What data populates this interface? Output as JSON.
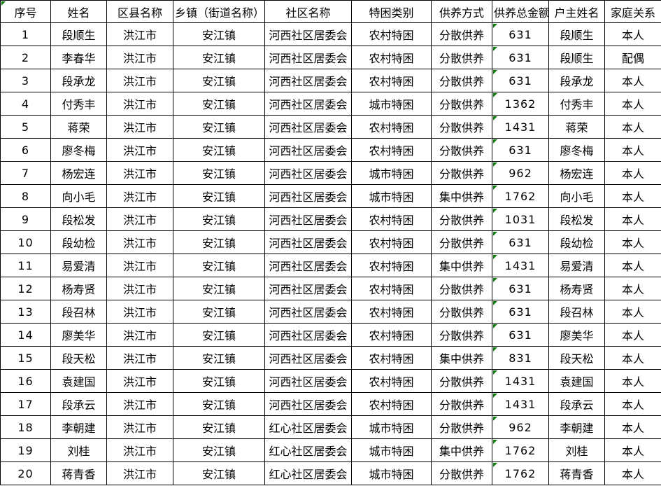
{
  "colors": {
    "error_indicator": "#0a7d0a",
    "grid_border": "#000000",
    "background": "#ffffff",
    "text": "#000000"
  },
  "icons": {
    "error_indicator_icon": "green-corner-triangle"
  },
  "table": {
    "columns": [
      "序号",
      "姓名",
      "区县名称",
      "乡镇（街道名称）",
      "社区名称",
      "特困类别",
      "供养方式",
      "供养总金额",
      "户主姓名",
      "家庭关系"
    ],
    "error_indicator_on_header_first_cell": true,
    "error_indicator_on_amount_cells": true,
    "rows": [
      [
        "1",
        "段顺生",
        "洪江市",
        "安江镇",
        "河西社区居委会",
        "农村特困",
        "分散供养",
        "631",
        "段顺生",
        "本人"
      ],
      [
        "2",
        "李春华",
        "洪江市",
        "安江镇",
        "河西社区居委会",
        "农村特困",
        "分散供养",
        "631",
        "段顺生",
        "配偶"
      ],
      [
        "3",
        "段承龙",
        "洪江市",
        "安江镇",
        "河西社区居委会",
        "农村特困",
        "分散供养",
        "631",
        "段承龙",
        "本人"
      ],
      [
        "4",
        "付秀丰",
        "洪江市",
        "安江镇",
        "河西社区居委会",
        "城市特困",
        "分散供养",
        "1362",
        "付秀丰",
        "本人"
      ],
      [
        "5",
        "蒋荣",
        "洪江市",
        "安江镇",
        "河西社区居委会",
        "农村特困",
        "分散供养",
        "1431",
        "蒋荣",
        "本人"
      ],
      [
        "6",
        "廖冬梅",
        "洪江市",
        "安江镇",
        "河西社区居委会",
        "农村特困",
        "分散供养",
        "631",
        "廖冬梅",
        "本人"
      ],
      [
        "7",
        "杨宏连",
        "洪江市",
        "安江镇",
        "河西社区居委会",
        "城市特困",
        "分散供养",
        "962",
        "杨宏连",
        "本人"
      ],
      [
        "8",
        "向小毛",
        "洪江市",
        "安江镇",
        "河西社区居委会",
        "城市特困",
        "集中供养",
        "1762",
        "向小毛",
        "本人"
      ],
      [
        "9",
        "段松发",
        "洪江市",
        "安江镇",
        "河西社区居委会",
        "农村特困",
        "分散供养",
        "1031",
        "段松发",
        "本人"
      ],
      [
        "10",
        "段幼检",
        "洪江市",
        "安江镇",
        "河西社区居委会",
        "农村特困",
        "分散供养",
        "631",
        "段幼检",
        "本人"
      ],
      [
        "11",
        "易爱清",
        "洪江市",
        "安江镇",
        "河西社区居委会",
        "农村特困",
        "集中供养",
        "1431",
        "易爱清",
        "本人"
      ],
      [
        "12",
        "杨寿贤",
        "洪江市",
        "安江镇",
        "河西社区居委会",
        "农村特困",
        "分散供养",
        "631",
        "杨寿贤",
        "本人"
      ],
      [
        "13",
        "段召林",
        "洪江市",
        "安江镇",
        "河西社区居委会",
        "农村特困",
        "分散供养",
        "631",
        "段召林",
        "本人"
      ],
      [
        "14",
        "廖美华",
        "洪江市",
        "安江镇",
        "河西社区居委会",
        "农村特困",
        "分散供养",
        "631",
        "廖美华",
        "本人"
      ],
      [
        "15",
        "段天松",
        "洪江市",
        "安江镇",
        "河西社区居委会",
        "农村特困",
        "集中供养",
        "831",
        "段天松",
        "本人"
      ],
      [
        "16",
        "袁建国",
        "洪江市",
        "安江镇",
        "河西社区居委会",
        "农村特困",
        "分散供养",
        "1431",
        "袁建国",
        "本人"
      ],
      [
        "17",
        "段承云",
        "洪江市",
        "安江镇",
        "河西社区居委会",
        "农村特困",
        "分散供养",
        "1431",
        "段承云",
        "本人"
      ],
      [
        "18",
        "李朝建",
        "洪江市",
        "安江镇",
        "红心社区居委会",
        "城市特困",
        "分散供养",
        "962",
        "李朝建",
        "本人"
      ],
      [
        "19",
        "刘桂",
        "洪江市",
        "安江镇",
        "红心社区居委会",
        "城市特困",
        "集中供养",
        "1762",
        "刘桂",
        "本人"
      ],
      [
        "20",
        "蒋青香",
        "洪江市",
        "安江镇",
        "红心社区居委会",
        "城市特困",
        "分散供养",
        "1762",
        "蒋青香",
        "本人"
      ]
    ]
  }
}
